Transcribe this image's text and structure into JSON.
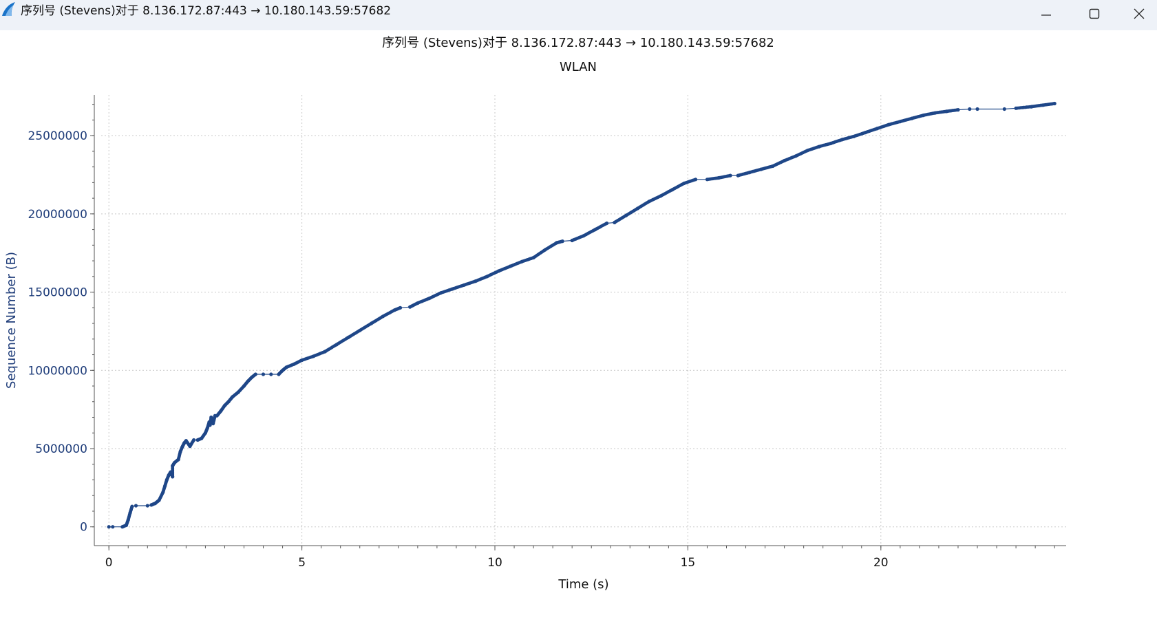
{
  "window": {
    "title": "序列号 (Stevens)对于 8.136.172.87:443 → 10.180.143.59:57682",
    "icon": "wireshark-fin-icon",
    "controls": [
      "minimize-icon",
      "maximize-icon",
      "close-icon"
    ]
  },
  "chart_data": {
    "type": "scatter",
    "title": "序列号 (Stevens)对于 8.136.172.87:443 → 10.180.143.59:57682",
    "subtitle": "WLAN",
    "xlabel": "Time (s)",
    "ylabel": "Sequence Number (B)",
    "xlim": [
      -0.2,
      24.8
    ],
    "ylim": [
      -1200000,
      27600000
    ],
    "x_ticks": [
      0,
      5,
      10,
      15,
      20
    ],
    "x_tick_labels": [
      "0",
      "5",
      "10",
      "15",
      "20"
    ],
    "y_ticks": [
      0,
      5000000,
      10000000,
      15000000,
      20000000,
      25000000
    ],
    "y_tick_labels": [
      "0",
      "5000000",
      "10000000",
      "15000000",
      "20000000",
      "25000000"
    ],
    "grid": true,
    "series_color": "#1f4788",
    "series": [
      {
        "points": [
          [
            0.0,
            0
          ],
          [
            0.1,
            0
          ],
          [
            0.35,
            0
          ],
          [
            0.45,
            100000
          ],
          [
            0.5,
            450000
          ],
          [
            0.55,
            900000
          ],
          [
            0.6,
            1300000
          ],
          [
            0.7,
            1350000
          ],
          [
            1.0,
            1350000
          ],
          [
            1.1,
            1400000
          ],
          [
            1.2,
            1500000
          ],
          [
            1.3,
            1700000
          ],
          [
            1.4,
            2200000
          ],
          [
            1.45,
            2600000
          ],
          [
            1.5,
            3000000
          ],
          [
            1.55,
            3300000
          ],
          [
            1.6,
            3500000
          ],
          [
            1.65,
            3200000
          ],
          [
            1.65,
            3900000
          ],
          [
            1.7,
            4100000
          ],
          [
            1.8,
            4300000
          ],
          [
            1.85,
            4800000
          ],
          [
            1.9,
            5100000
          ],
          [
            1.95,
            5350000
          ],
          [
            2.0,
            5500000
          ],
          [
            2.1,
            5150000
          ],
          [
            2.2,
            5550000
          ],
          [
            2.3,
            5550000
          ],
          [
            2.4,
            5650000
          ],
          [
            2.5,
            6000000
          ],
          [
            2.55,
            6300000
          ],
          [
            2.6,
            6700000
          ],
          [
            2.62,
            6500000
          ],
          [
            2.65,
            7000000
          ],
          [
            2.7,
            6600000
          ],
          [
            2.75,
            7100000
          ],
          [
            2.8,
            7100000
          ],
          [
            2.9,
            7400000
          ],
          [
            3.0,
            7750000
          ],
          [
            3.1,
            8000000
          ],
          [
            3.2,
            8300000
          ],
          [
            3.35,
            8600000
          ],
          [
            3.5,
            9000000
          ],
          [
            3.6,
            9300000
          ],
          [
            3.7,
            9550000
          ],
          [
            3.8,
            9750000
          ],
          [
            4.0,
            9750000
          ],
          [
            4.2,
            9750000
          ],
          [
            4.4,
            9750000
          ],
          [
            4.5,
            10000000
          ],
          [
            4.6,
            10200000
          ],
          [
            4.8,
            10400000
          ],
          [
            5.0,
            10650000
          ],
          [
            5.3,
            10900000
          ],
          [
            5.6,
            11200000
          ],
          [
            5.9,
            11650000
          ],
          [
            6.2,
            12100000
          ],
          [
            6.5,
            12550000
          ],
          [
            6.8,
            13000000
          ],
          [
            7.1,
            13450000
          ],
          [
            7.4,
            13850000
          ],
          [
            7.55,
            14000000
          ],
          [
            7.8,
            14050000
          ],
          [
            8.0,
            14300000
          ],
          [
            8.3,
            14600000
          ],
          [
            8.6,
            14950000
          ],
          [
            8.9,
            15200000
          ],
          [
            9.2,
            15450000
          ],
          [
            9.5,
            15700000
          ],
          [
            9.8,
            16000000
          ],
          [
            10.1,
            16350000
          ],
          [
            10.4,
            16650000
          ],
          [
            10.7,
            16950000
          ],
          [
            11.0,
            17200000
          ],
          [
            11.3,
            17700000
          ],
          [
            11.6,
            18150000
          ],
          [
            11.75,
            18250000
          ],
          [
            12.0,
            18300000
          ],
          [
            12.3,
            18600000
          ],
          [
            12.6,
            19000000
          ],
          [
            12.9,
            19400000
          ],
          [
            13.1,
            19450000
          ],
          [
            13.4,
            19900000
          ],
          [
            13.7,
            20350000
          ],
          [
            14.0,
            20800000
          ],
          [
            14.3,
            21150000
          ],
          [
            14.6,
            21550000
          ],
          [
            14.9,
            21950000
          ],
          [
            15.2,
            22200000
          ],
          [
            15.5,
            22200000
          ],
          [
            15.8,
            22300000
          ],
          [
            16.1,
            22450000
          ],
          [
            16.3,
            22450000
          ],
          [
            16.6,
            22650000
          ],
          [
            16.9,
            22850000
          ],
          [
            17.2,
            23050000
          ],
          [
            17.5,
            23400000
          ],
          [
            17.8,
            23700000
          ],
          [
            18.1,
            24050000
          ],
          [
            18.4,
            24300000
          ],
          [
            18.7,
            24500000
          ],
          [
            19.0,
            24750000
          ],
          [
            19.3,
            24950000
          ],
          [
            19.6,
            25200000
          ],
          [
            19.9,
            25450000
          ],
          [
            20.2,
            25700000
          ],
          [
            20.5,
            25900000
          ],
          [
            20.8,
            26100000
          ],
          [
            21.1,
            26300000
          ],
          [
            21.4,
            26450000
          ],
          [
            21.7,
            26550000
          ],
          [
            22.0,
            26650000
          ],
          [
            22.3,
            26700000
          ],
          [
            22.5,
            26700000
          ],
          [
            23.2,
            26700000
          ],
          [
            23.5,
            26750000
          ],
          [
            23.9,
            26850000
          ],
          [
            24.2,
            26950000
          ],
          [
            24.5,
            27050000
          ]
        ]
      }
    ]
  }
}
